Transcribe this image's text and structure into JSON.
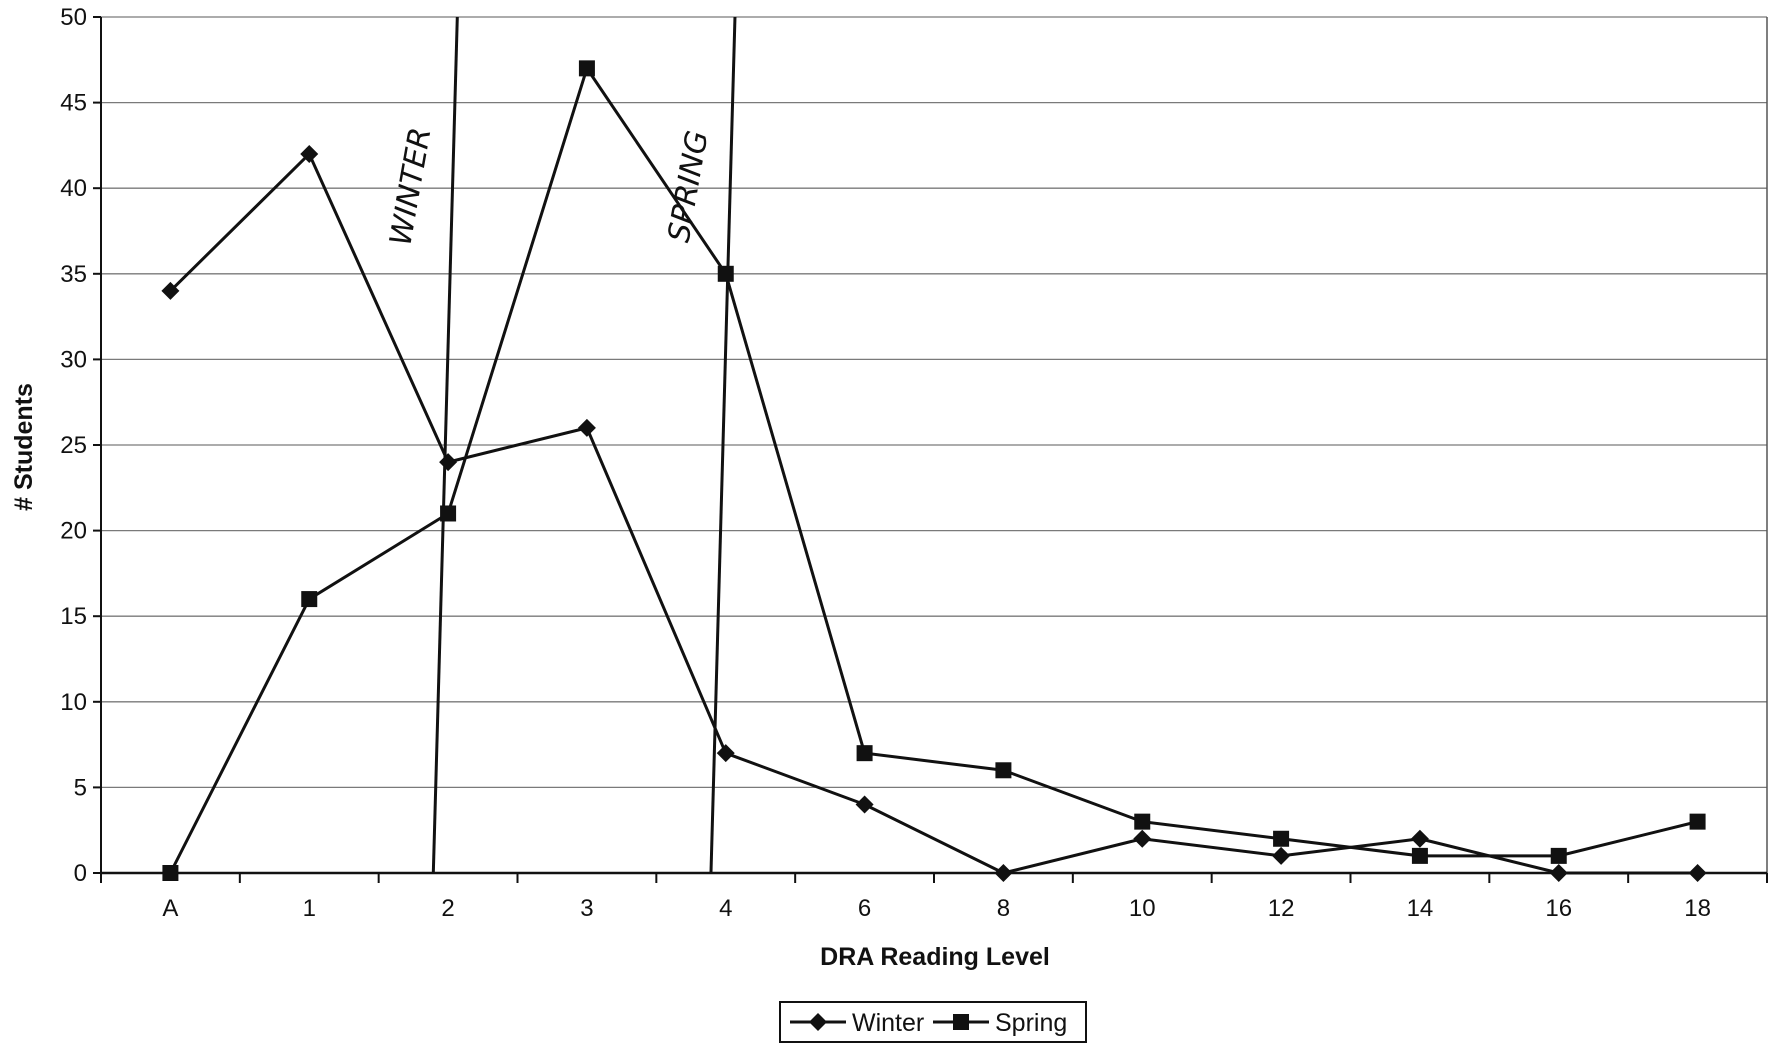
{
  "chart_data": {
    "type": "line",
    "categories": [
      "A",
      "1",
      "2",
      "3",
      "4",
      "6",
      "8",
      "10",
      "12",
      "14",
      "16",
      "18"
    ],
    "series": [
      {
        "name": "Winter",
        "marker": "diamond",
        "values": [
          34,
          42,
          24,
          26,
          7,
          4,
          0,
          2,
          1,
          2,
          0,
          0
        ]
      },
      {
        "name": "Spring",
        "marker": "square",
        "values": [
          0,
          16,
          21,
          47,
          35,
          7,
          6,
          3,
          2,
          1,
          1,
          3
        ]
      }
    ],
    "xlabel": "DRA Reading Level",
    "ylabel": "# Students",
    "ylim": [
      0,
      50
    ],
    "yticks": [
      0,
      5,
      10,
      15,
      20,
      25,
      30,
      35,
      40,
      45,
      50
    ],
    "grid": true,
    "legend_position": "bottom-center",
    "annotations": [
      {
        "text": "WINTER",
        "between": [
          "1",
          "2"
        ]
      },
      {
        "text": "SPRING",
        "between": [
          "3",
          "4"
        ]
      }
    ],
    "colors": {
      "line": "#111111",
      "grid": "#7a7a7a",
      "background": "#ffffff"
    }
  }
}
